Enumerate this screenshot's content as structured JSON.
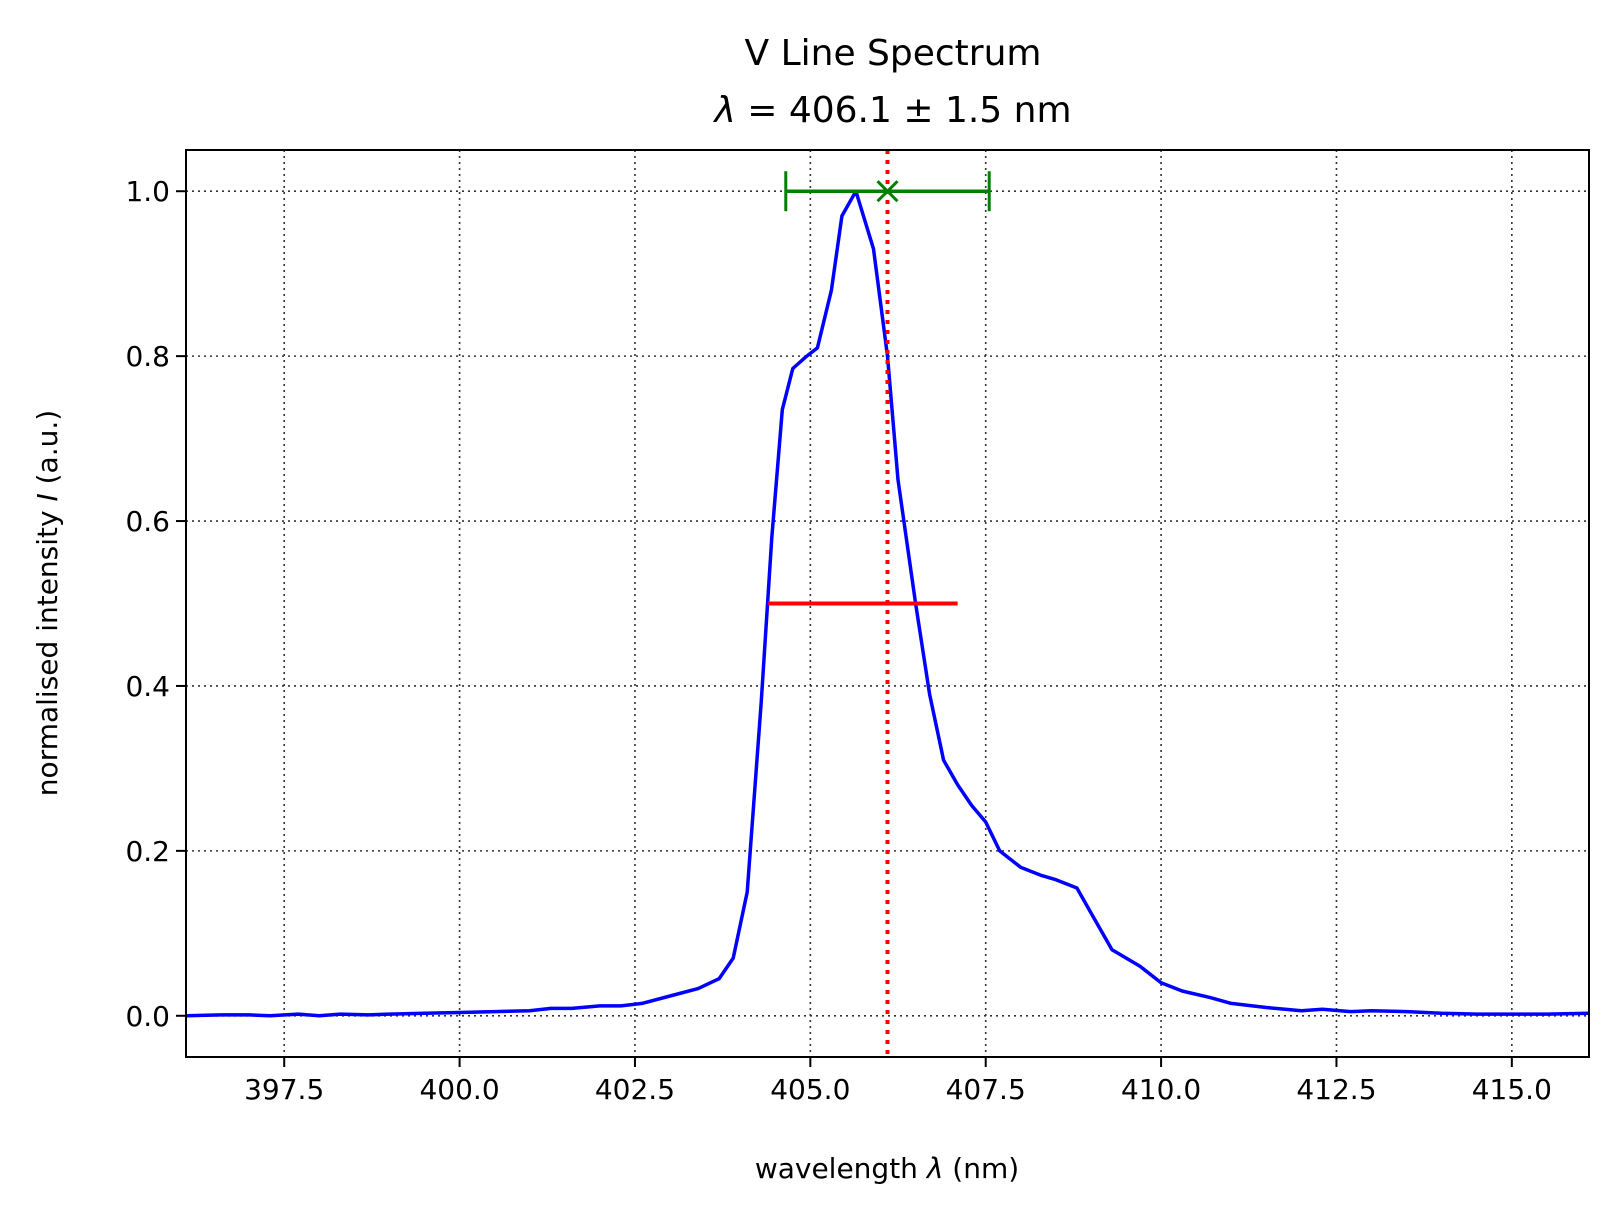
{
  "chart_data": {
    "type": "line",
    "title_line1": "V Line Spectrum",
    "title_line2_symbol": "λ",
    "title_line2_text": " = 406.1 ± 1.5 nm",
    "xlabel_text": "wavelength ",
    "xlabel_symbol": "λ",
    "xlabel_unit": " (nm)",
    "ylabel_text": "normalised intensity ",
    "ylabel_symbol": "I",
    "ylabel_unit": " (a.u.)",
    "xlim": [
      396.1,
      416.1
    ],
    "ylim": [
      -0.05,
      1.05
    ],
    "grid": true,
    "xticks": [
      397.5,
      400.0,
      402.5,
      405.0,
      407.5,
      410.0,
      412.5,
      415.0
    ],
    "xtick_labels": [
      "397.5",
      "400.0",
      "402.5",
      "405.0",
      "407.5",
      "410.0",
      "412.5",
      "415.0"
    ],
    "yticks": [
      0.0,
      0.2,
      0.4,
      0.6,
      0.8,
      1.0
    ],
    "ytick_labels": [
      "0.0",
      "0.2",
      "0.4",
      "0.6",
      "0.8",
      "1.0"
    ],
    "series": [
      {
        "name": "spectrum",
        "color": "#0000ff",
        "x": [
          396.1,
          396.6,
          397.0,
          397.3,
          397.7,
          398.0,
          398.3,
          398.7,
          399.0,
          399.5,
          400.0,
          400.5,
          401.0,
          401.3,
          401.6,
          402.0,
          402.3,
          402.6,
          403.0,
          403.4,
          403.7,
          403.9,
          404.1,
          404.3,
          404.45,
          404.6,
          404.75,
          404.95,
          405.1,
          405.3,
          405.45,
          405.65,
          405.9,
          406.1,
          406.25,
          406.5,
          406.7,
          406.9,
          407.1,
          407.3,
          407.5,
          407.7,
          408.0,
          408.3,
          408.5,
          408.8,
          409.0,
          409.3,
          409.7,
          410.0,
          410.3,
          410.7,
          411.0,
          411.5,
          412.0,
          412.3,
          412.7,
          413.0,
          413.5,
          414.0,
          414.5,
          415.0,
          415.5,
          416.1
        ],
        "y": [
          0.0,
          0.001,
          0.001,
          0.0,
          0.002,
          0.0,
          0.002,
          0.001,
          0.002,
          0.003,
          0.004,
          0.005,
          0.006,
          0.009,
          0.009,
          0.012,
          0.012,
          0.015,
          0.024,
          0.033,
          0.045,
          0.07,
          0.15,
          0.38,
          0.58,
          0.735,
          0.785,
          0.8,
          0.81,
          0.88,
          0.97,
          1.0,
          0.93,
          0.8,
          0.65,
          0.5,
          0.39,
          0.31,
          0.28,
          0.255,
          0.235,
          0.2,
          0.18,
          0.17,
          0.165,
          0.155,
          0.125,
          0.08,
          0.06,
          0.04,
          0.03,
          0.022,
          0.015,
          0.01,
          0.006,
          0.008,
          0.005,
          0.006,
          0.005,
          0.003,
          0.002,
          0.002,
          0.002,
          0.003
        ]
      }
    ],
    "center_line": {
      "x": 406.1,
      "color": "#ff0000",
      "style": "dotted"
    },
    "fwhm_line": {
      "x_start": 404.4,
      "x_end": 407.1,
      "y": 0.5,
      "color": "#ff0000"
    },
    "peak_marker": {
      "x": 406.1,
      "y": 1.0,
      "xerr": 1.45,
      "color": "#008000",
      "marker": "x"
    }
  }
}
